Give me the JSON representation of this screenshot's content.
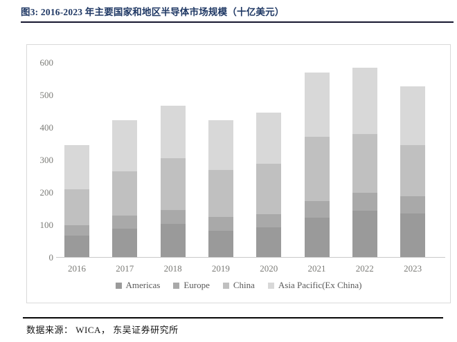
{
  "header": {
    "title": "图3:  2016-2023 年主要国家和地区半导体市场规模（十亿美元）"
  },
  "footer": {
    "source": "数据来源： WICA， 东吴证券研究所"
  },
  "chart_data": {
    "type": "bar",
    "stacked": true,
    "title": "2016-2023 年主要国家和地区半导体市场规模（十亿美元）",
    "categories": [
      "2016",
      "2017",
      "2018",
      "2019",
      "2020",
      "2021",
      "2022",
      "2023"
    ],
    "series": [
      {
        "name": "Americas",
        "color": "#9a9a9a",
        "values": [
          65,
          88,
          103,
          80,
          92,
          121,
          142,
          134
        ]
      },
      {
        "name": "Europe",
        "color": "#a9a9a9",
        "values": [
          32,
          39,
          42,
          43,
          40,
          51,
          56,
          53
        ]
      },
      {
        "name": "China",
        "color": "#c0c0c0",
        "values": [
          112,
          137,
          159,
          145,
          155,
          198,
          181,
          158
        ]
      },
      {
        "name": "Asia Pacific(Ex China)",
        "color": "#d8d8d8",
        "values": [
          135,
          157,
          163,
          153,
          158,
          198,
          204,
          180
        ]
      }
    ],
    "totals": [
      344,
      421,
      467,
      421,
      445,
      568,
      583,
      525
    ],
    "xlabel": "",
    "ylabel": "",
    "ylim": [
      0,
      600
    ],
    "yticks": [
      0,
      100,
      200,
      300,
      400,
      500,
      600
    ],
    "grid": false,
    "legend_position": "bottom"
  }
}
